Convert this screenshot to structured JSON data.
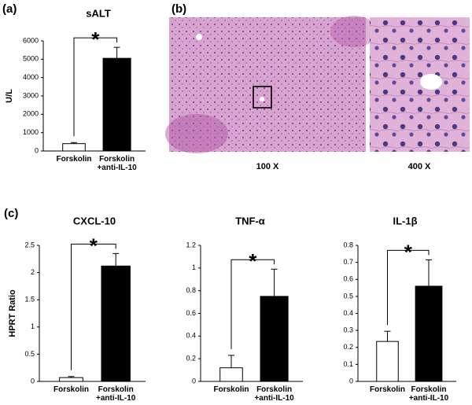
{
  "panels": [
    "(a)",
    "(b)",
    "(c)"
  ],
  "images": {
    "labels": [
      "100 X",
      "400 X"
    ]
  },
  "chart_data": [
    {
      "type": "bar",
      "title": "sALT",
      "ylabel": "U/L",
      "categories": [
        "Forskolin",
        "Forskolin\n+anti-IL-10"
      ],
      "values": [
        400,
        5050
      ],
      "errors": [
        60,
        600
      ],
      "colors": [
        "#ffffff",
        "#000000"
      ],
      "annotation": "*",
      "ylim": [
        0,
        6000
      ],
      "yticks": [
        0,
        1000,
        2000,
        3000,
        4000,
        5000,
        6000
      ]
    },
    {
      "type": "bar",
      "title": "CXCL-10",
      "ylabel": "HPRT Ratio",
      "categories": [
        "Forskolin",
        "Forskolin\n+anti-IL-10"
      ],
      "values": [
        0.07,
        2.12
      ],
      "errors": [
        0.02,
        0.23
      ],
      "colors": [
        "#ffffff",
        "#000000"
      ],
      "annotation": "*",
      "ylim": [
        0,
        2.5
      ],
      "yticks": [
        0,
        0.5,
        1,
        1.5,
        2,
        2.5
      ]
    },
    {
      "type": "bar",
      "title": "TNF-α",
      "categories": [
        "Forskolin",
        "Forskolin\n+anti-IL-10"
      ],
      "values": [
        0.12,
        0.75
      ],
      "errors": [
        0.11,
        0.24
      ],
      "colors": [
        "#ffffff",
        "#000000"
      ],
      "annotation": "*",
      "ylim": [
        0,
        1.2
      ],
      "yticks": [
        0,
        0.2,
        0.4,
        0.6,
        0.8,
        1,
        1.2
      ]
    },
    {
      "type": "bar",
      "title": "IL-1β",
      "categories": [
        "Forskolin",
        "Forskolin\n+anti-IL-10"
      ],
      "values": [
        0.235,
        0.56
      ],
      "errors": [
        0.06,
        0.155
      ],
      "colors": [
        "#ffffff",
        "#000000"
      ],
      "annotation": "*",
      "ylim": [
        0,
        0.8
      ],
      "yticks": [
        0,
        0.1,
        0.2,
        0.3,
        0.4,
        0.5,
        0.6,
        0.7,
        0.8
      ]
    }
  ]
}
